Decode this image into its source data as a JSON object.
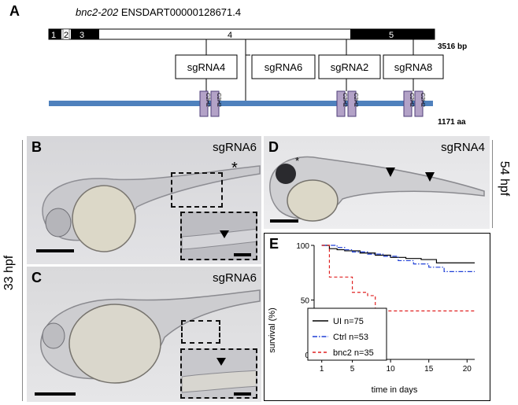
{
  "panelA": {
    "letter": "A",
    "gene_name": "bnc2-202",
    "transcript_id": "ENSDART00000128671.4",
    "exons": [
      "1",
      "2",
      "3",
      "4",
      "5"
    ],
    "transcript_length": "3516 bp",
    "protein_length": "1171 aa",
    "sgrnas": [
      "sgRNA4",
      "sgRNA6",
      "sgRNA2",
      "sgRNA8"
    ],
    "domain_label": "C2H2"
  },
  "panelB": {
    "letter": "B",
    "label": "sgRNA6",
    "asterisk": "*"
  },
  "panelC": {
    "letter": "C",
    "label": "sgRNA6"
  },
  "panelD": {
    "letter": "D",
    "label": "sgRNA4",
    "asterisk": "*"
  },
  "side_labels": {
    "left": "33 hpf",
    "right": "54 hpf"
  },
  "panelE": {
    "letter": "E",
    "chart_data": {
      "type": "line",
      "title": "",
      "xlabel": "time in days",
      "ylabel": "survival (%)",
      "xlim": [
        0,
        21
      ],
      "ylim": [
        0,
        100
      ],
      "xticks": [
        1,
        5,
        10,
        15,
        20
      ],
      "yticks": [
        0,
        50,
        100
      ],
      "legend_position": "bottom-left",
      "series": [
        {
          "name": "UI n=75",
          "color": "#000000",
          "style": "solid",
          "x": [
            1,
            2,
            3,
            4,
            6,
            8,
            10,
            12,
            14,
            16,
            21
          ],
          "y": [
            100,
            97,
            96,
            95,
            93,
            91,
            89,
            88,
            87,
            84,
            84
          ]
        },
        {
          "name": "Ctrl n=53",
          "color": "#1f3fd6",
          "style": "dashdot",
          "x": [
            1,
            3,
            4,
            5,
            7,
            9,
            11,
            13,
            15,
            17,
            21
          ],
          "y": [
            100,
            98,
            96,
            94,
            92,
            90,
            86,
            83,
            80,
            76,
            76
          ]
        },
        {
          "name": "bnc2 n=35",
          "color": "#e02020",
          "style": "dashed",
          "x": [
            1,
            2,
            5,
            7,
            8,
            21
          ],
          "y": [
            100,
            71,
            57,
            54,
            40,
            40
          ]
        }
      ]
    }
  }
}
